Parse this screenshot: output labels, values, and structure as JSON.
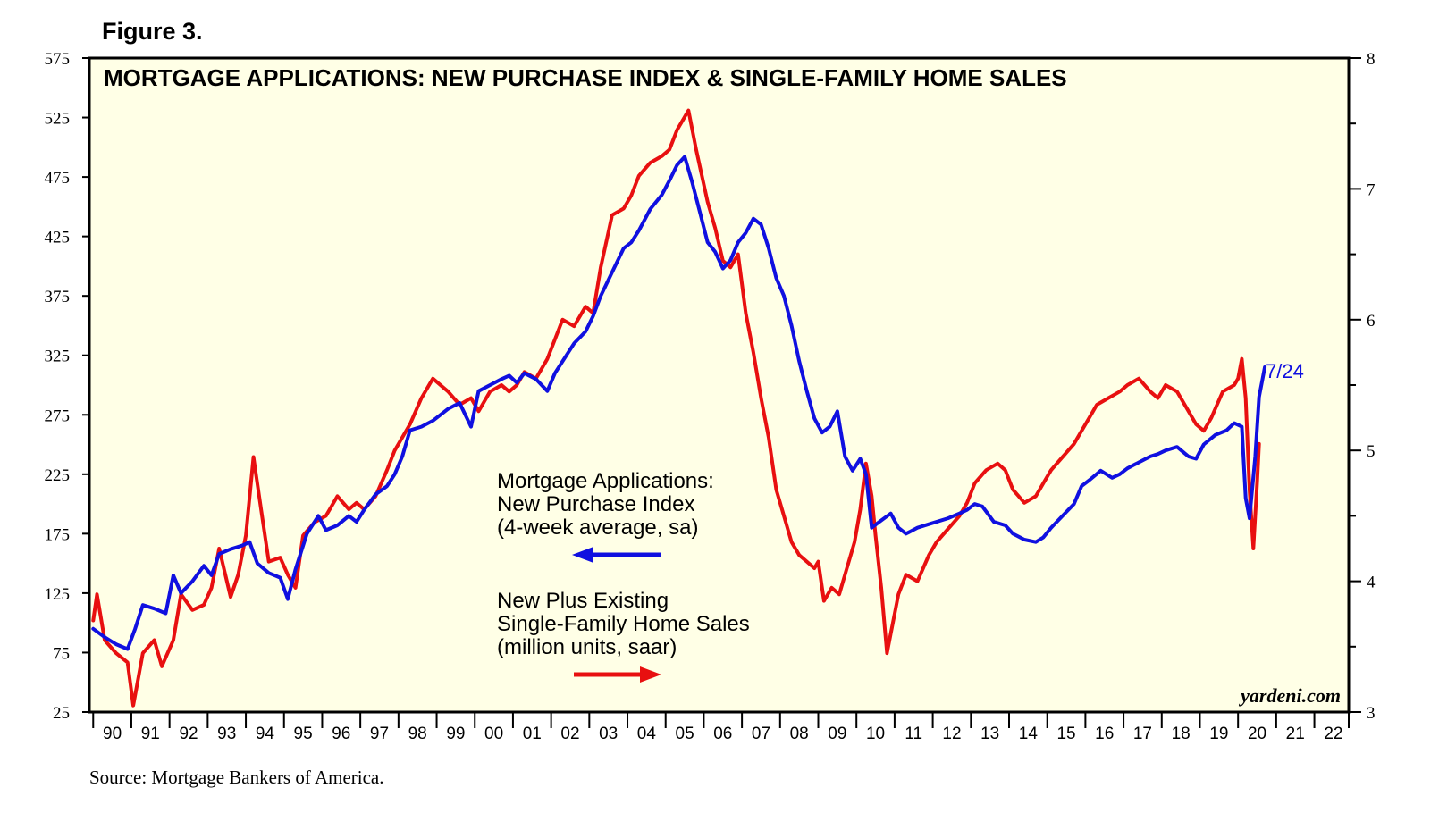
{
  "figure_label": "Figure 3.",
  "source_note": "Source: Mortgage Bankers of America.",
  "chart_data": {
    "type": "line",
    "title": "MORTGAGE APPLICATIONS: NEW PURCHASE INDEX & SINGLE-FAMILY HOME SALES",
    "watermark": "yardeni.com",
    "background_color": "#FFFFE6",
    "x_range": [
      1989.9,
      2022.9
    ],
    "x_tick_labels": [
      "90",
      "91",
      "92",
      "93",
      "94",
      "95",
      "96",
      "97",
      "98",
      "99",
      "00",
      "01",
      "02",
      "03",
      "04",
      "05",
      "06",
      "07",
      "08",
      "09",
      "10",
      "11",
      "12",
      "13",
      "14",
      "15",
      "16",
      "17",
      "18",
      "19",
      "20",
      "21",
      "22"
    ],
    "y_left": {
      "range": [
        25,
        575
      ],
      "ticks": [
        25,
        75,
        125,
        175,
        225,
        275,
        325,
        375,
        425,
        475,
        525,
        575
      ]
    },
    "y_right": {
      "range": [
        3,
        8
      ],
      "ticks": [
        3,
        4,
        5,
        6,
        7,
        8
      ]
    },
    "series": [
      {
        "name": "Mortgage Applications: New Purchase Index (4-week average, sa)",
        "axis": "left",
        "color": "#1010E0",
        "label_lines": [
          "Mortgage Applications:",
          "New Purchase Index",
          "(4-week average, sa)"
        ],
        "arrow": "left",
        "end_label": "7/24",
        "points": [
          [
            1990.0,
            95
          ],
          [
            1990.3,
            88
          ],
          [
            1990.6,
            82
          ],
          [
            1990.9,
            78
          ],
          [
            1991.1,
            95
          ],
          [
            1991.3,
            115
          ],
          [
            1991.6,
            112
          ],
          [
            1991.9,
            108
          ],
          [
            1992.1,
            140
          ],
          [
            1992.3,
            125
          ],
          [
            1992.6,
            135
          ],
          [
            1992.9,
            148
          ],
          [
            1993.1,
            140
          ],
          [
            1993.3,
            158
          ],
          [
            1993.6,
            162
          ],
          [
            1993.9,
            165
          ],
          [
            1994.1,
            168
          ],
          [
            1994.3,
            150
          ],
          [
            1994.6,
            142
          ],
          [
            1994.9,
            138
          ],
          [
            1995.1,
            120
          ],
          [
            1995.3,
            145
          ],
          [
            1995.6,
            175
          ],
          [
            1995.9,
            190
          ],
          [
            1996.1,
            178
          ],
          [
            1996.4,
            182
          ],
          [
            1996.7,
            190
          ],
          [
            1996.9,
            185
          ],
          [
            1997.1,
            195
          ],
          [
            1997.4,
            208
          ],
          [
            1997.7,
            215
          ],
          [
            1997.9,
            225
          ],
          [
            1998.1,
            240
          ],
          [
            1998.3,
            262
          ],
          [
            1998.6,
            265
          ],
          [
            1998.9,
            270
          ],
          [
            1999.1,
            275
          ],
          [
            1999.3,
            280
          ],
          [
            1999.6,
            285
          ],
          [
            1999.9,
            265
          ],
          [
            2000.1,
            295
          ],
          [
            2000.4,
            300
          ],
          [
            2000.7,
            305
          ],
          [
            2000.9,
            308
          ],
          [
            2001.1,
            302
          ],
          [
            2001.3,
            310
          ],
          [
            2001.6,
            305
          ],
          [
            2001.9,
            295
          ],
          [
            2002.1,
            310
          ],
          [
            2002.3,
            320
          ],
          [
            2002.6,
            335
          ],
          [
            2002.9,
            345
          ],
          [
            2003.1,
            358
          ],
          [
            2003.3,
            375
          ],
          [
            2003.6,
            395
          ],
          [
            2003.9,
            415
          ],
          [
            2004.1,
            420
          ],
          [
            2004.3,
            430
          ],
          [
            2004.6,
            448
          ],
          [
            2004.9,
            460
          ],
          [
            2005.1,
            472
          ],
          [
            2005.3,
            485
          ],
          [
            2005.5,
            492
          ],
          [
            2005.7,
            470
          ],
          [
            2005.9,
            445
          ],
          [
            2006.1,
            420
          ],
          [
            2006.3,
            412
          ],
          [
            2006.5,
            398
          ],
          [
            2006.7,
            405
          ],
          [
            2006.9,
            420
          ],
          [
            2007.1,
            428
          ],
          [
            2007.3,
            440
          ],
          [
            2007.5,
            435
          ],
          [
            2007.7,
            415
          ],
          [
            2007.9,
            390
          ],
          [
            2008.1,
            375
          ],
          [
            2008.3,
            350
          ],
          [
            2008.5,
            320
          ],
          [
            2008.7,
            295
          ],
          [
            2008.9,
            272
          ],
          [
            2009.1,
            260
          ],
          [
            2009.3,
            265
          ],
          [
            2009.5,
            278
          ],
          [
            2009.7,
            240
          ],
          [
            2009.9,
            228
          ],
          [
            2010.1,
            238
          ],
          [
            2010.25,
            225
          ],
          [
            2010.4,
            180
          ],
          [
            2010.6,
            185
          ],
          [
            2010.9,
            192
          ],
          [
            2011.1,
            180
          ],
          [
            2011.3,
            175
          ],
          [
            2011.6,
            180
          ],
          [
            2011.9,
            183
          ],
          [
            2012.1,
            185
          ],
          [
            2012.4,
            188
          ],
          [
            2012.7,
            192
          ],
          [
            2012.9,
            195
          ],
          [
            2013.1,
            200
          ],
          [
            2013.3,
            198
          ],
          [
            2013.6,
            185
          ],
          [
            2013.9,
            182
          ],
          [
            2014.1,
            175
          ],
          [
            2014.4,
            170
          ],
          [
            2014.7,
            168
          ],
          [
            2014.9,
            172
          ],
          [
            2015.1,
            180
          ],
          [
            2015.4,
            190
          ],
          [
            2015.7,
            200
          ],
          [
            2015.9,
            215
          ],
          [
            2016.1,
            220
          ],
          [
            2016.4,
            228
          ],
          [
            2016.7,
            222
          ],
          [
            2016.9,
            225
          ],
          [
            2017.1,
            230
          ],
          [
            2017.4,
            235
          ],
          [
            2017.7,
            240
          ],
          [
            2017.9,
            242
          ],
          [
            2018.1,
            245
          ],
          [
            2018.4,
            248
          ],
          [
            2018.7,
            240
          ],
          [
            2018.9,
            238
          ],
          [
            2019.1,
            250
          ],
          [
            2019.4,
            258
          ],
          [
            2019.7,
            262
          ],
          [
            2019.9,
            268
          ],
          [
            2020.1,
            265
          ],
          [
            2020.2,
            205
          ],
          [
            2020.3,
            188
          ],
          [
            2020.45,
            240
          ],
          [
            2020.55,
            290
          ],
          [
            2020.7,
            315
          ]
        ]
      },
      {
        "name": "New Plus Existing Single-Family Home Sales (million units, saar)",
        "axis": "right",
        "color": "#E81010",
        "label_lines": [
          "New Plus Existing",
          "Single-Family Home Sales",
          "(million units, saar)"
        ],
        "arrow": "right",
        "points": [
          [
            1990.0,
            3.7
          ],
          [
            1990.1,
            3.9
          ],
          [
            1990.3,
            3.55
          ],
          [
            1990.6,
            3.45
          ],
          [
            1990.9,
            3.38
          ],
          [
            1991.05,
            3.05
          ],
          [
            1991.3,
            3.45
          ],
          [
            1991.6,
            3.55
          ],
          [
            1991.8,
            3.35
          ],
          [
            1992.1,
            3.55
          ],
          [
            1992.3,
            3.9
          ],
          [
            1992.6,
            3.78
          ],
          [
            1992.9,
            3.82
          ],
          [
            1993.1,
            3.95
          ],
          [
            1993.3,
            4.25
          ],
          [
            1993.6,
            3.88
          ],
          [
            1993.8,
            4.05
          ],
          [
            1994.0,
            4.35
          ],
          [
            1994.2,
            4.95
          ],
          [
            1994.4,
            4.55
          ],
          [
            1994.6,
            4.15
          ],
          [
            1994.9,
            4.18
          ],
          [
            1995.1,
            4.05
          ],
          [
            1995.3,
            3.95
          ],
          [
            1995.5,
            4.35
          ],
          [
            1995.8,
            4.45
          ],
          [
            1996.1,
            4.5
          ],
          [
            1996.4,
            4.65
          ],
          [
            1996.7,
            4.55
          ],
          [
            1996.9,
            4.6
          ],
          [
            1997.1,
            4.55
          ],
          [
            1997.4,
            4.65
          ],
          [
            1997.7,
            4.85
          ],
          [
            1997.9,
            5.0
          ],
          [
            1998.1,
            5.1
          ],
          [
            1998.3,
            5.2
          ],
          [
            1998.6,
            5.4
          ],
          [
            1998.9,
            5.55
          ],
          [
            1999.1,
            5.5
          ],
          [
            1999.3,
            5.45
          ],
          [
            1999.6,
            5.35
          ],
          [
            1999.9,
            5.4
          ],
          [
            2000.1,
            5.3
          ],
          [
            2000.4,
            5.45
          ],
          [
            2000.7,
            5.5
          ],
          [
            2000.9,
            5.45
          ],
          [
            2001.1,
            5.5
          ],
          [
            2001.3,
            5.6
          ],
          [
            2001.6,
            5.55
          ],
          [
            2001.9,
            5.7
          ],
          [
            2002.1,
            5.85
          ],
          [
            2002.3,
            6.0
          ],
          [
            2002.6,
            5.95
          ],
          [
            2002.9,
            6.1
          ],
          [
            2003.1,
            6.05
          ],
          [
            2003.3,
            6.4
          ],
          [
            2003.6,
            6.8
          ],
          [
            2003.9,
            6.85
          ],
          [
            2004.1,
            6.95
          ],
          [
            2004.3,
            7.1
          ],
          [
            2004.6,
            7.2
          ],
          [
            2004.9,
            7.25
          ],
          [
            2005.1,
            7.3
          ],
          [
            2005.3,
            7.45
          ],
          [
            2005.6,
            7.6
          ],
          [
            2005.8,
            7.3
          ],
          [
            2005.95,
            7.1
          ],
          [
            2006.1,
            6.9
          ],
          [
            2006.3,
            6.7
          ],
          [
            2006.5,
            6.45
          ],
          [
            2006.7,
            6.4
          ],
          [
            2006.9,
            6.5
          ],
          [
            2007.1,
            6.05
          ],
          [
            2007.3,
            5.75
          ],
          [
            2007.5,
            5.4
          ],
          [
            2007.7,
            5.1
          ],
          [
            2007.9,
            4.7
          ],
          [
            2008.1,
            4.5
          ],
          [
            2008.3,
            4.3
          ],
          [
            2008.5,
            4.2
          ],
          [
            2008.7,
            4.15
          ],
          [
            2008.9,
            4.1
          ],
          [
            2009.0,
            4.15
          ],
          [
            2009.15,
            3.85
          ],
          [
            2009.35,
            3.95
          ],
          [
            2009.55,
            3.9
          ],
          [
            2009.75,
            4.1
          ],
          [
            2009.95,
            4.3
          ],
          [
            2010.1,
            4.55
          ],
          [
            2010.25,
            4.9
          ],
          [
            2010.4,
            4.65
          ],
          [
            2010.5,
            4.35
          ],
          [
            2010.65,
            3.95
          ],
          [
            2010.8,
            3.45
          ],
          [
            2010.9,
            3.6
          ],
          [
            2011.1,
            3.9
          ],
          [
            2011.3,
            4.05
          ],
          [
            2011.6,
            4.0
          ],
          [
            2011.9,
            4.2
          ],
          [
            2012.1,
            4.3
          ],
          [
            2012.4,
            4.4
          ],
          [
            2012.7,
            4.5
          ],
          [
            2012.9,
            4.6
          ],
          [
            2013.1,
            4.75
          ],
          [
            2013.4,
            4.85
          ],
          [
            2013.7,
            4.9
          ],
          [
            2013.9,
            4.85
          ],
          [
            2014.1,
            4.7
          ],
          [
            2014.4,
            4.6
          ],
          [
            2014.7,
            4.65
          ],
          [
            2014.9,
            4.75
          ],
          [
            2015.1,
            4.85
          ],
          [
            2015.4,
            4.95
          ],
          [
            2015.7,
            5.05
          ],
          [
            2015.9,
            5.15
          ],
          [
            2016.1,
            5.25
          ],
          [
            2016.3,
            5.35
          ],
          [
            2016.6,
            5.4
          ],
          [
            2016.9,
            5.45
          ],
          [
            2017.1,
            5.5
          ],
          [
            2017.4,
            5.55
          ],
          [
            2017.7,
            5.45
          ],
          [
            2017.9,
            5.4
          ],
          [
            2018.1,
            5.5
          ],
          [
            2018.4,
            5.45
          ],
          [
            2018.7,
            5.3
          ],
          [
            2018.9,
            5.2
          ],
          [
            2019.1,
            5.15
          ],
          [
            2019.3,
            5.25
          ],
          [
            2019.6,
            5.45
          ],
          [
            2019.9,
            5.5
          ],
          [
            2020.0,
            5.55
          ],
          [
            2020.1,
            5.7
          ],
          [
            2020.2,
            5.4
          ],
          [
            2020.3,
            4.7
          ],
          [
            2020.4,
            4.25
          ],
          [
            2020.5,
            4.75
          ],
          [
            2020.55,
            5.05
          ]
        ]
      }
    ]
  }
}
